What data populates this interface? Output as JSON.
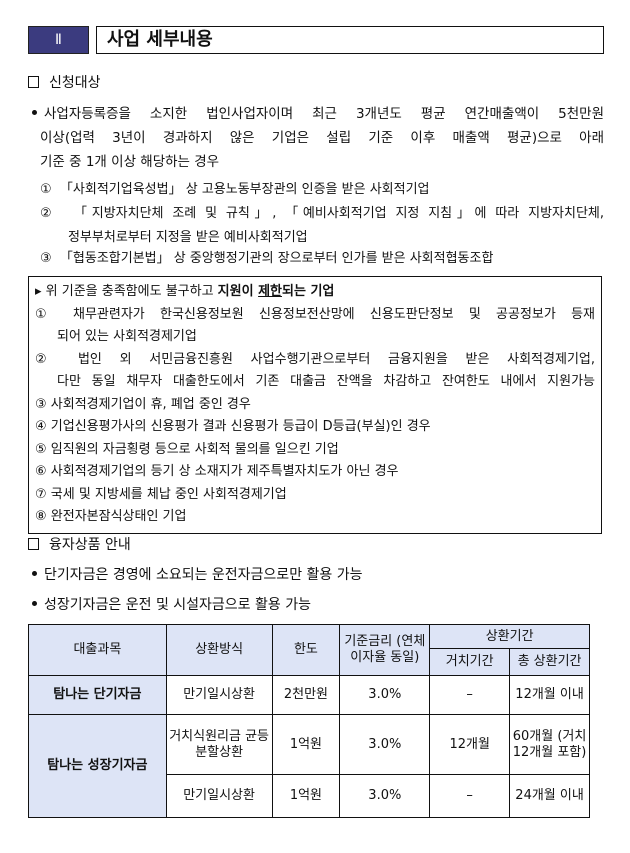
{
  "header": {
    "roman": "Ⅱ",
    "title": "사업 세부내용"
  },
  "section1": {
    "title": "신청대상",
    "bullet_lines": [
      "사업자등록증을 소지한 법인사업자이며 최근 3개년도 평균 연간매출액이 5천만원",
      "이상(업력 3년이 경과하지 않은 기업은 설립 기준 이후 매출액 평균)으로 아래",
      "기준 중 1개 이상 해당하는 경우"
    ],
    "items": [
      {
        "num": "①",
        "lines": [
          "「사회적기업육성법」 상 고용노동부장관의 인증을 받은 사회적기업"
        ]
      },
      {
        "num": "②",
        "lines": [
          "「지방자치단체 조례 및 규칙」, 「예비사회적기업 지정 지침」에 따라 지방자치단체,",
          "정부부처로부터 지정을 받은 예비사회적기업"
        ]
      },
      {
        "num": "③",
        "lines": [
          "「협동조합기본법」 상 중앙행정기관의 장으로부터 인가를 받은 사회적협동조합"
        ]
      }
    ]
  },
  "restriction": {
    "heading_prefix": "▸ 위 기준을 충족함에도 불구하고 ",
    "heading_bold": "지원이 ",
    "heading_underline": "제한",
    "heading_bold2": "되는 기업",
    "lines": [
      "① 채무관련자가 한국신용정보원 신용정보전산망에 신용도판단정보 및 공공정보가 등재",
      "되어 있는 사회적경제기업",
      "② 법인 외 서민금융진흥원 사업수행기관으로부터 금융지원을 받은 사회적경제기업,",
      "다만 동일 채무자 대출한도에서 기존 대출금 잔액을 차감하고 잔여한도 내에서 지원가능",
      "③ 사회적경제기업이 휴, 폐업 중인 경우",
      "④ 기업신용평가사의 신용평가 결과 신용평가 등급이 D등급(부실)인 경우",
      "⑤ 임직원의 자금횡령 등으로 사회적 물의를 일으킨 기업",
      "⑥ 사회적경제기업의 등기 상 소재지가 제주특별자치도가 아닌 경우",
      "⑦ 국세 및 지방세를 체납 중인 사회적경제기업",
      "⑧ 완전자본잠식상태인 기업"
    ]
  },
  "section2": {
    "title": "융자상품 안내",
    "bullets": [
      "단기자금은 경영에 소요되는 운전자금으로만 활용 가능",
      "성장기자금은 운전 및 시설자금으로 활용 가능"
    ]
  },
  "table": {
    "headers": {
      "product": "대출과목",
      "method": "상환방식",
      "limit": "한도",
      "rate": "기준금리 (연체이자율 동일)",
      "period": "상환기간",
      "grace": "거치기간",
      "total": "총 상환기간"
    },
    "rows": [
      {
        "product": "탐나는 단기자금",
        "method": "만기일시상환",
        "limit": "2천만원",
        "rate": "3.0%",
        "grace": "–",
        "total": "12개월 이내"
      },
      {
        "product": "탐나는 성장기자금",
        "method": "거치식원리금 균등분할상환",
        "limit": "1억원",
        "rate": "3.0%",
        "grace": "12개월",
        "total": "60개월 (거치 12개월 포함)"
      },
      {
        "method": "만기일시상환",
        "limit": "1억원",
        "rate": "3.0%",
        "grace": "–",
        "total": "24개월 이내"
      }
    ]
  },
  "colors": {
    "roman_bg": "#3b3b7f",
    "table_header_bg": "#dde4f6"
  }
}
